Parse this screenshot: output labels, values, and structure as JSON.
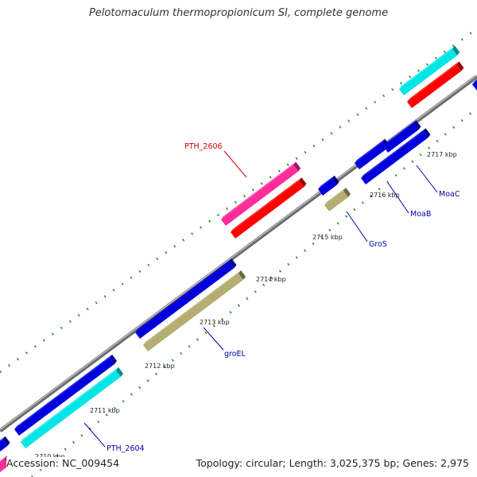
{
  "title": "Pelotomaculum thermopropionicum SI, complete genome",
  "accession_label": "Accession: NC_009454",
  "topology_label": "Topology: circular; Length: 3,025,375 bp; Genes: 2,975",
  "colors": {
    "backbone": "#8a8a8a",
    "tick": "#1a8a1a",
    "feature_blue": "#0000dd",
    "feature_cyan": "#00e5e5",
    "feature_red": "#ff0000",
    "feature_pink": "#ff2d9c",
    "feature_olive": "#b5ad72",
    "label_red": "#d40000",
    "label_blue": "#0000aa"
  },
  "scale_labels": [
    "2710 kbp",
    "2711 kbp",
    "2712 kbp",
    "2713 kbp",
    "2714 kbp",
    "2715 kbp",
    "2716 kbp",
    "2717 kbp"
  ],
  "gene_labels": [
    {
      "text": "PTH_2606",
      "color": "red"
    },
    {
      "text": "groEL",
      "color": "blue"
    },
    {
      "text": "GroS",
      "color": "blue"
    },
    {
      "text": "MoaB",
      "color": "blue"
    },
    {
      "text": "MoaC",
      "color": "blue"
    },
    {
      "text": "PTH_2604",
      "color": "blue"
    }
  ]
}
